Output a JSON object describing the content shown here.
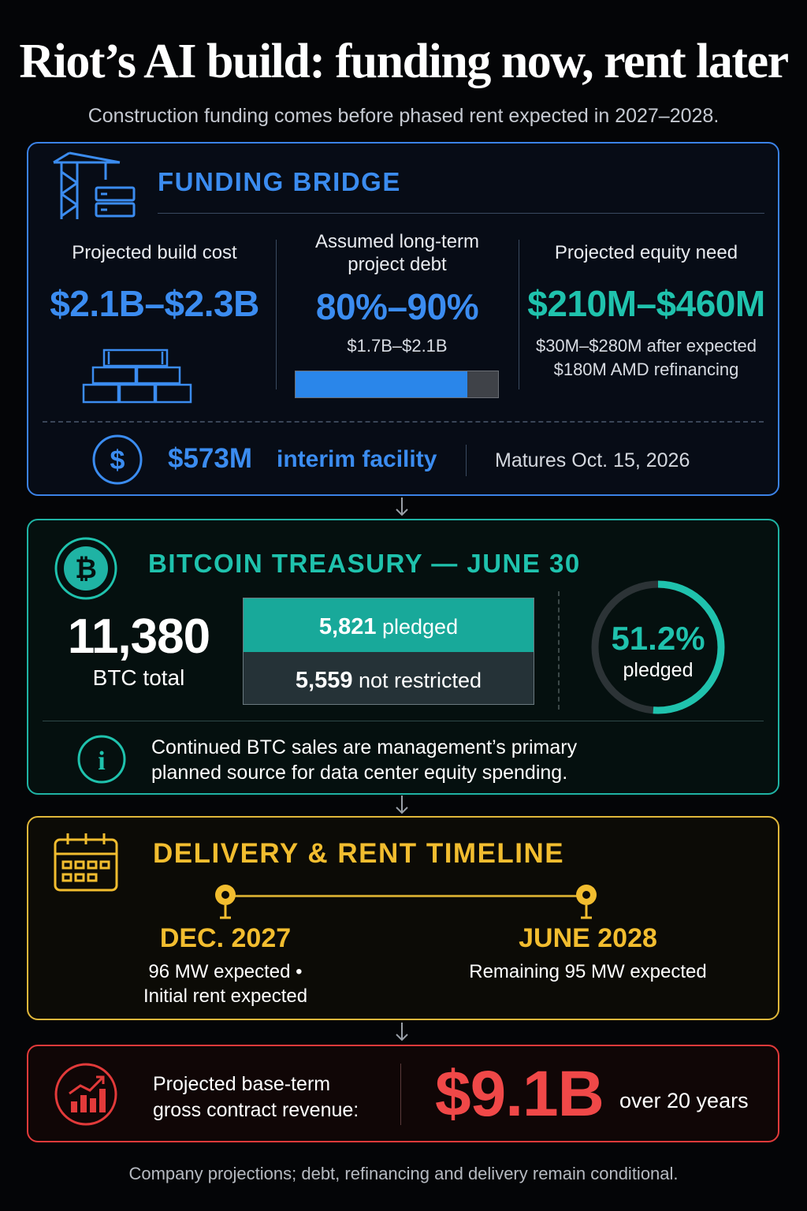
{
  "title": "Riot’s AI build: funding now, rent later",
  "subtitle": "Construction funding comes before phased rent expected in 2027–2028.",
  "funding": {
    "heading": "FUNDING BRIDGE",
    "build_cost": {
      "label": "Projected build cost",
      "value": "$2.1B–$2.3B"
    },
    "debt": {
      "label_line1": "Assumed long-term",
      "label_line2": "project debt",
      "value": "80%–90%",
      "amount": "$1.7B–$2.1B",
      "bar_fraction": 0.85
    },
    "equity": {
      "label": "Projected equity need",
      "value": "$210M–$460M",
      "note_line1": "$30M–$280M after expected",
      "note_line2": "$180M AMD refinancing"
    },
    "interim": {
      "value": "$573M",
      "label": "interim facility",
      "maturity": "Matures Oct. 15, 2026"
    },
    "icons": [
      "crane-server-icon",
      "stacked-containers-icon",
      "dollar-circle-icon"
    ]
  },
  "bitcoin": {
    "heading": "BITCOIN TREASURY — JUNE 30",
    "total_value": "11,380",
    "total_label": "BTC total",
    "pledged_value": "5,821",
    "pledged_label": "pledged",
    "unrestricted_value": "5,559",
    "unrestricted_label": "not restricted",
    "pledged_percent_text": "51.2%",
    "pledged_percent_label": "pledged",
    "pledged_fraction": 0.512,
    "note_line1": "Continued BTC sales are management’s primary",
    "note_line2": "planned source for data center equity spending.",
    "icons": [
      "bitcoin-icon",
      "info-icon"
    ]
  },
  "timeline": {
    "heading": "DELIVERY & RENT TIMELINE",
    "milestones": [
      {
        "date": "DEC. 2027",
        "line1": "96 MW expected •",
        "line2": "Initial rent expected"
      },
      {
        "date": "JUNE 2028",
        "line1": "Remaining 95 MW expected",
        "line2": ""
      }
    ],
    "icons": [
      "calendar-icon",
      "pin-icon"
    ]
  },
  "revenue": {
    "label_line1": "Projected base-term",
    "label_line2": "gross contract revenue:",
    "value": "$9.1B",
    "unit": "over 20 years",
    "icons": [
      "growth-chart-icon"
    ]
  },
  "footnote": "Company projections; debt, refinancing and delivery remain conditional.",
  "colors": {
    "blue": "#3b8cf0",
    "teal": "#1fc2ad",
    "gold": "#f2bd2f",
    "red": "#f04848",
    "background": "#040507"
  }
}
